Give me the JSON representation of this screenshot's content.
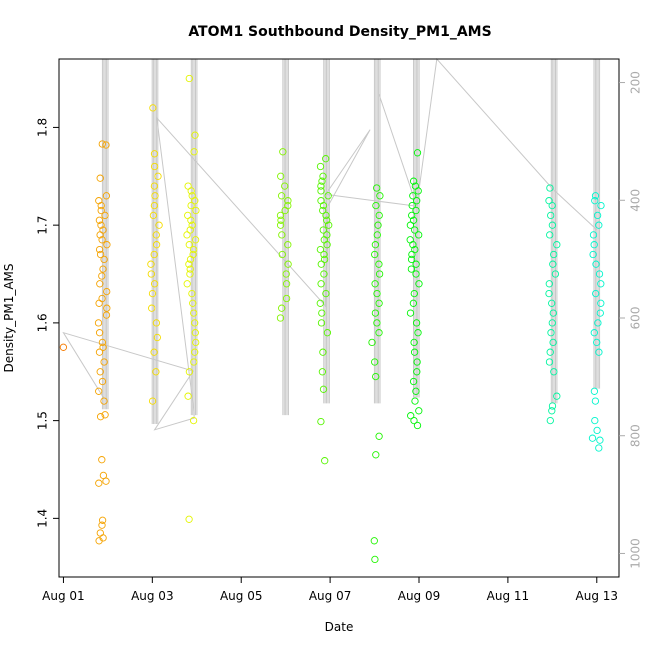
{
  "chart_data": {
    "type": "scatter",
    "title": "ATOM1 Southbound Density_PM1_AMS",
    "xlabel": "Date",
    "ylabel": "Density_PM1_AMS",
    "xlim": [
      "2016-07-31T21:36",
      "2016-08-13T12:00"
    ],
    "ylim": [
      1.34,
      1.87
    ],
    "y2lim": [
      1040,
      160
    ],
    "x_ticks": [
      {
        "value": "2016-08-01",
        "label": "Aug 01"
      },
      {
        "value": "2016-08-03",
        "label": "Aug 03"
      },
      {
        "value": "2016-08-05",
        "label": "Aug 05"
      },
      {
        "value": "2016-08-07",
        "label": "Aug 07"
      },
      {
        "value": "2016-08-09",
        "label": "Aug 09"
      },
      {
        "value": "2016-08-11",
        "label": "Aug 11"
      },
      {
        "value": "2016-08-13",
        "label": "Aug 13"
      }
    ],
    "y_ticks": [
      {
        "value": 1.4,
        "label": "1.4"
      },
      {
        "value": 1.5,
        "label": "1.5"
      },
      {
        "value": 1.6,
        "label": "1.6"
      },
      {
        "value": 1.7,
        "label": "1.7"
      },
      {
        "value": 1.8,
        "label": "1.8"
      }
    ],
    "y2_ticks": [
      {
        "value": 200,
        "label": "200"
      },
      {
        "value": 400,
        "label": "400"
      },
      {
        "value": 600,
        "label": "600"
      },
      {
        "value": 800,
        "label": "800"
      },
      {
        "value": 1000,
        "label": "1000"
      }
    ],
    "points_colored_by_time": true,
    "color_ramp_hue_start": 30,
    "color_ramp_hue_end": 170,
    "point_clusters": [
      {
        "day": 0.0,
        "values": [
          1.575
        ]
      },
      {
        "day": 0.88,
        "values": [
          1.38,
          1.377,
          1.385,
          1.393,
          1.398,
          1.436,
          1.438,
          1.444,
          1.46,
          1.504,
          1.506,
          1.52,
          1.53,
          1.54,
          1.55,
          1.56,
          1.57,
          1.575,
          1.58,
          1.59,
          1.6,
          1.608,
          1.615,
          1.62,
          1.625,
          1.632,
          1.64,
          1.648,
          1.655,
          1.665,
          1.67,
          1.675,
          1.68,
          1.685,
          1.69,
          1.695,
          1.7,
          1.705,
          1.71,
          1.715,
          1.72,
          1.725,
          1.73,
          1.748,
          1.782,
          1.783
        ]
      },
      {
        "day": 2.06,
        "values": [
          1.52,
          1.55,
          1.57,
          1.585,
          1.6,
          1.615,
          1.63,
          1.64,
          1.65,
          1.66,
          1.67,
          1.68,
          1.69,
          1.7,
          1.71,
          1.72,
          1.73,
          1.74,
          1.75,
          1.76,
          1.773,
          1.82
        ]
      },
      {
        "day": 2.88,
        "values": [
          1.399,
          1.5,
          1.525,
          1.55,
          1.56,
          1.57,
          1.58,
          1.59,
          1.6,
          1.61,
          1.62,
          1.63,
          1.64,
          1.65,
          1.655,
          1.66,
          1.665,
          1.67,
          1.675,
          1.68,
          1.685,
          1.69,
          1.695,
          1.7,
          1.705,
          1.71,
          1.715,
          1.72,
          1.725,
          1.73,
          1.735,
          1.74,
          1.775,
          1.792,
          1.85
        ]
      },
      {
        "day": 4.98,
        "values": [
          1.605,
          1.615,
          1.625,
          1.64,
          1.65,
          1.66,
          1.67,
          1.68,
          1.69,
          1.7,
          1.705,
          1.71,
          1.715,
          1.72,
          1.725,
          1.73,
          1.74,
          1.75,
          1.775
        ]
      },
      {
        "day": 5.88,
        "values": [
          1.459,
          1.499,
          1.532,
          1.55,
          1.57,
          1.59,
          1.6,
          1.61,
          1.62,
          1.63,
          1.64,
          1.65,
          1.66,
          1.665,
          1.67,
          1.675,
          1.68,
          1.685,
          1.69,
          1.695,
          1.7,
          1.705,
          1.71,
          1.715,
          1.72,
          1.725,
          1.73,
          1.735,
          1.74,
          1.745,
          1.75,
          1.76,
          1.768
        ]
      },
      {
        "day": 7.02,
        "values": [
          1.358,
          1.377,
          1.465,
          1.484,
          1.545,
          1.56,
          1.58,
          1.59,
          1.6,
          1.61,
          1.62,
          1.63,
          1.64,
          1.65,
          1.66,
          1.67,
          1.68,
          1.69,
          1.7,
          1.71,
          1.72,
          1.73,
          1.738
        ]
      },
      {
        "day": 7.9,
        "values": [
          1.495,
          1.5,
          1.505,
          1.51,
          1.52,
          1.53,
          1.54,
          1.55,
          1.56,
          1.57,
          1.58,
          1.59,
          1.6,
          1.61,
          1.62,
          1.63,
          1.64,
          1.65,
          1.655,
          1.66,
          1.665,
          1.67,
          1.675,
          1.68,
          1.685,
          1.69,
          1.695,
          1.7,
          1.705,
          1.71,
          1.715,
          1.72,
          1.725,
          1.73,
          1.735,
          1.74,
          1.745,
          1.774
        ]
      },
      {
        "day": 11.02,
        "values": [
          1.5,
          1.51,
          1.515,
          1.525,
          1.55,
          1.56,
          1.57,
          1.58,
          1.59,
          1.6,
          1.61,
          1.62,
          1.63,
          1.64,
          1.65,
          1.66,
          1.67,
          1.68,
          1.69,
          1.7,
          1.71,
          1.72,
          1.725,
          1.738
        ]
      },
      {
        "day": 12.0,
        "values": [
          1.472,
          1.48,
          1.482,
          1.49,
          1.5,
          1.52,
          1.53,
          1.57,
          1.58,
          1.59,
          1.6,
          1.61,
          1.62,
          1.63,
          1.64,
          1.65,
          1.66,
          1.67,
          1.68,
          1.69,
          1.7,
          1.71,
          1.72,
          1.725,
          1.73
        ]
      }
    ],
    "line_series": {
      "name": "",
      "color": "#c8c8c8",
      "right_axis": true,
      "spike_groups": [
        {
          "day": 0.94,
          "base": 755,
          "top": 160
        },
        {
          "day": 2.06,
          "base": 780,
          "top": 160
        },
        {
          "day": 2.94,
          "base": 765,
          "top": 160
        },
        {
          "day": 5.0,
          "base": 765,
          "top": 160
        },
        {
          "day": 5.92,
          "base": 745,
          "top": 160
        },
        {
          "day": 7.06,
          "base": 745,
          "top": 160
        },
        {
          "day": 7.94,
          "base": 735,
          "top": 160
        },
        {
          "day": 11.04,
          "base": 745,
          "top": 160
        },
        {
          "day": 12.0,
          "base": 720,
          "top": 160
        }
      ],
      "connector_path": [
        {
          "day": 0.0,
          "y": 625
        },
        {
          "day": 0.9,
          "y": 735
        },
        {
          "day": 0.0,
          "y": 625
        },
        {
          "day": 2.92,
          "y": 690
        },
        {
          "day": 2.92,
          "y": 690
        },
        {
          "day": 2.05,
          "y": 790
        },
        {
          "day": 2.94,
          "y": 770
        },
        {
          "day": 2.94,
          "y": 760
        },
        {
          "day": 2.1,
          "y": 260
        },
        {
          "day": 5.9,
          "y": 580
        },
        {
          "day": 5.95,
          "y": 410
        },
        {
          "day": 6.9,
          "y": 280
        },
        {
          "day": 6.9,
          "y": 280
        },
        {
          "day": 5.9,
          "y": 390
        },
        {
          "day": 7.95,
          "y": 410
        },
        {
          "day": 7.1,
          "y": 220
        },
        {
          "day": 7.95,
          "y": 410
        },
        {
          "day": 8.4,
          "y": 155
        },
        {
          "day": 11.0,
          "y": 380
        },
        {
          "day": 12.0,
          "y": 450
        }
      ]
    }
  }
}
